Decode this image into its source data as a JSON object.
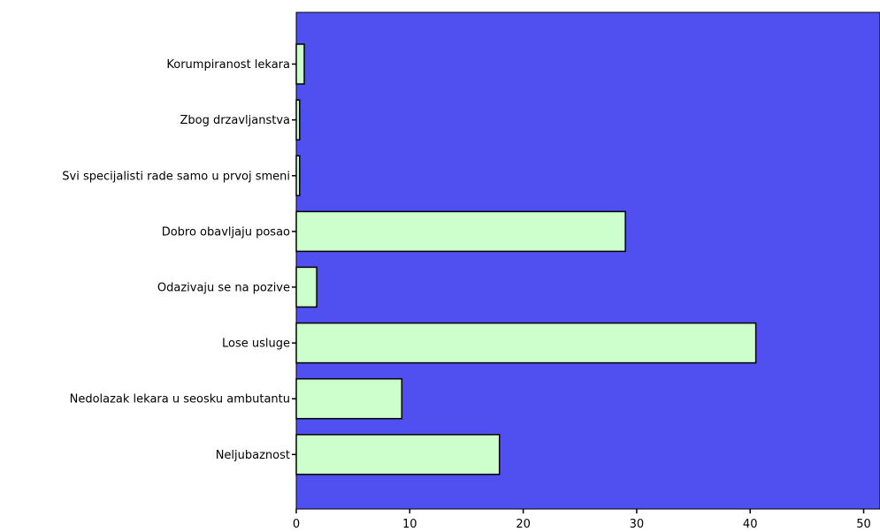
{
  "chart_data": {
    "type": "bar",
    "orientation": "horizontal",
    "categories": [
      "Korumpiranost lekara",
      "Zbog drzavljanstva",
      "Svi specijalisti rade samo u prvoj smeni",
      "Dobro obavljaju posao",
      "Odazivaju se na pozive",
      "Lose usluge",
      "Nedolazak lekara u seosku ambutantu",
      "Neljubaznost"
    ],
    "values": [
      0.7,
      0.3,
      0.3,
      29,
      1.8,
      40.5,
      9.3,
      17.9
    ],
    "xlim": [
      0,
      52
    ],
    "xticks": [
      0,
      10,
      20,
      30,
      40,
      50
    ],
    "title": "",
    "xlabel": "",
    "ylabel": "",
    "grid": false,
    "colors": {
      "plot_background": "#5050f0",
      "bar_fill": "#ccffcc",
      "bar_stroke": "#000000"
    }
  }
}
